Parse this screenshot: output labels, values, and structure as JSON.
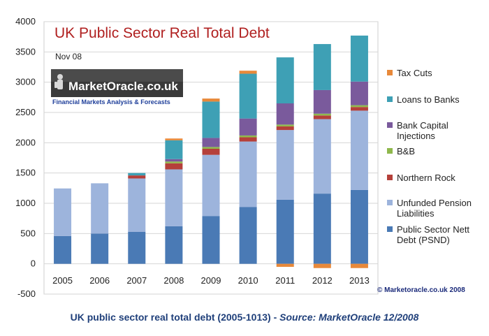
{
  "chart_data": {
    "type": "bar",
    "stacked": true,
    "title": "UK Public Sector Real Total Debt",
    "subtitle": "Nov 08",
    "categories": [
      "2005",
      "2006",
      "2007",
      "2008",
      "2009",
      "2010",
      "2011",
      "2012",
      "2013"
    ],
    "ylim": [
      -500,
      4000
    ],
    "yticks": [
      "-500",
      "0",
      "500",
      "1000",
      "1500",
      "2000",
      "2500",
      "3000",
      "3500",
      "4000"
    ],
    "grid": true,
    "legend_position": "right",
    "series": [
      {
        "name": "Public Sector Nett Debt (PSND)",
        "color": "#4a7ab5",
        "values": [
          460,
          500,
          530,
          620,
          790,
          940,
          1060,
          1160,
          1220
        ]
      },
      {
        "name": "Unfunded Pension Liabilities",
        "color": "#9db4dc",
        "values": [
          785,
          830,
          880,
          940,
          1010,
          1080,
          1150,
          1230,
          1310
        ]
      },
      {
        "name": "Northern Rock",
        "color": "#b5403a",
        "values": [
          0,
          0,
          50,
          100,
          100,
          70,
          60,
          60,
          60
        ]
      },
      {
        "name": "B&B",
        "color": "#8fb84c",
        "values": [
          0,
          0,
          0,
          30,
          30,
          30,
          30,
          30,
          30
        ]
      },
      {
        "name": "Bank Capital Injections",
        "color": "#7a5a9c",
        "values": [
          0,
          0,
          0,
          40,
          150,
          280,
          350,
          390,
          390
        ]
      },
      {
        "name": "Loans to Banks",
        "color": "#3ea0b5",
        "values": [
          0,
          0,
          40,
          310,
          600,
          740,
          760,
          760,
          760
        ]
      },
      {
        "name": "Tax Cuts",
        "color": "#e8893a",
        "values": [
          0,
          0,
          0,
          30,
          50,
          50,
          -50,
          -70,
          -70
        ]
      }
    ],
    "legend_order": [
      6,
      5,
      4,
      3,
      2,
      1,
      0
    ],
    "legend_labels": {
      "6": [
        "Tax Cuts"
      ],
      "5": [
        "Loans to  Banks"
      ],
      "4": [
        "Bank Capital",
        "Injections"
      ],
      "3": [
        "B&B"
      ],
      "2": [
        "Northern Rock"
      ],
      "1": [
        "Unfunded Pension",
        "Liabilities"
      ],
      "0": [
        "Public Sector Nett",
        "Debt (PSND)"
      ]
    },
    "copyright": "© Marketoracle.co.uk  2008"
  },
  "logo": {
    "name": "MarketOracle.co.uk",
    "tagline": "Financial Markets Analysis & Forecasts"
  },
  "caption": {
    "main": "UK public sector real total debt (2005-1013) - ",
    "source": "Source: MarketOracle 12/2008"
  }
}
